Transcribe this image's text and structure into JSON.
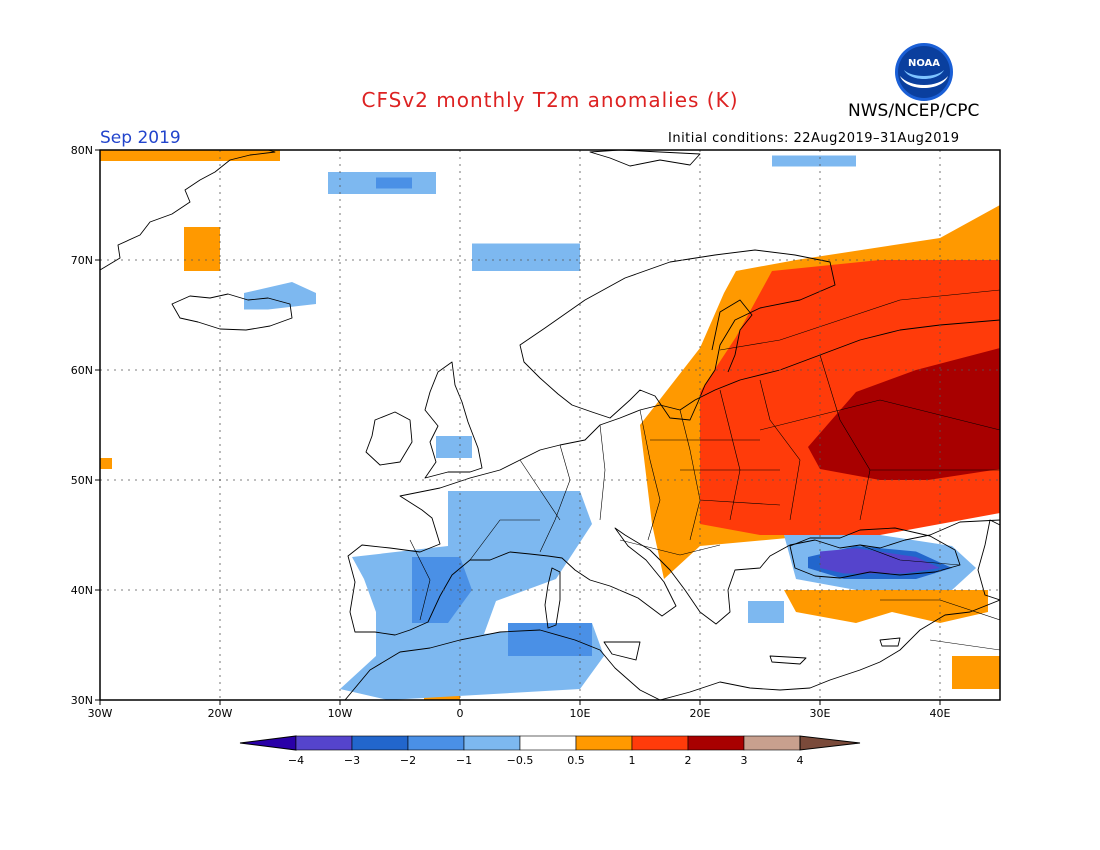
{
  "header": {
    "title": "CFSv2 monthly T2m anomalies (K)",
    "agency": "NWS/NCEP/CPC",
    "month": "Sep 2019",
    "initial_conditions": "Initial conditions: 22Aug2019–31Aug2019",
    "logo_text": "NOAA"
  },
  "colors": {
    "title": "#dd2222",
    "month": "#2244cc",
    "land_outline": "#000000",
    "grid": "#555555"
  },
  "map": {
    "lon_range": [
      -30,
      45
    ],
    "lat_range": [
      30,
      80
    ],
    "lon_ticks": [
      {
        "value": -30,
        "label": "30W"
      },
      {
        "value": -20,
        "label": "20W"
      },
      {
        "value": -10,
        "label": "10W"
      },
      {
        "value": 0,
        "label": "0"
      },
      {
        "value": 10,
        "label": "10E"
      },
      {
        "value": 20,
        "label": "20E"
      },
      {
        "value": 30,
        "label": "30E"
      },
      {
        "value": 40,
        "label": "40E"
      }
    ],
    "lat_ticks": [
      {
        "value": 30,
        "label": "30N"
      },
      {
        "value": 40,
        "label": "40N"
      },
      {
        "value": 50,
        "label": "50N"
      },
      {
        "value": 60,
        "label": "60N"
      },
      {
        "value": 70,
        "label": "70N"
      },
      {
        "value": 80,
        "label": "80N"
      }
    ],
    "grid": "dotted",
    "anomaly_regions": [
      {
        "class": "1",
        "points": [
          [
            -30,
            80
          ],
          [
            -15,
            80
          ],
          [
            -15,
            79
          ],
          [
            -30,
            79
          ]
        ]
      },
      {
        "class": "1",
        "points": [
          [
            -23,
            73
          ],
          [
            -20,
            73
          ],
          [
            -20,
            69
          ],
          [
            -23,
            69
          ]
        ]
      },
      {
        "class": "1",
        "points": [
          [
            -30,
            52
          ],
          [
            -29,
            52
          ],
          [
            -29,
            51
          ],
          [
            -30,
            51
          ]
        ]
      },
      {
        "class": "1",
        "points": [
          [
            23,
            69
          ],
          [
            28,
            70
          ],
          [
            40,
            72
          ],
          [
            45,
            75
          ],
          [
            45,
            50
          ],
          [
            30,
            45
          ],
          [
            20,
            44
          ],
          [
            17,
            41
          ],
          [
            16,
            46
          ],
          [
            15,
            55
          ],
          [
            20,
            62
          ],
          [
            22,
            67
          ]
        ]
      },
      {
        "class": "2",
        "points": [
          [
            26,
            69
          ],
          [
            35,
            70
          ],
          [
            45,
            70
          ],
          [
            45,
            47
          ],
          [
            35,
            45
          ],
          [
            25,
            45
          ],
          [
            20,
            46
          ],
          [
            20,
            58
          ],
          [
            23,
            63
          ]
        ]
      },
      {
        "class": "3",
        "points": [
          [
            33,
            58
          ],
          [
            38,
            60
          ],
          [
            45,
            62
          ],
          [
            45,
            51
          ],
          [
            39,
            50
          ],
          [
            35,
            50
          ],
          [
            30,
            51
          ],
          [
            29,
            53
          ]
        ]
      },
      {
        "class": "1",
        "points": [
          [
            27,
            40
          ],
          [
            33,
            40
          ],
          [
            35,
            41
          ],
          [
            38,
            40
          ],
          [
            44,
            40
          ],
          [
            44,
            38
          ],
          [
            40,
            37
          ],
          [
            36,
            38
          ],
          [
            33,
            37
          ],
          [
            28,
            38
          ]
        ]
      },
      {
        "class": "1",
        "points": [
          [
            41,
            34
          ],
          [
            45,
            34
          ],
          [
            45,
            31
          ],
          [
            41,
            31
          ]
        ]
      },
      {
        "class": "1",
        "points": [
          [
            -3,
            31
          ],
          [
            0,
            31
          ],
          [
            0,
            30
          ],
          [
            -3,
            30
          ]
        ]
      },
      {
        "class": "-1",
        "points": [
          [
            -11,
            78
          ],
          [
            -2,
            78
          ],
          [
            -2,
            76
          ],
          [
            -11,
            76
          ]
        ]
      },
      {
        "class": "-2",
        "points": [
          [
            -7,
            77.5
          ],
          [
            -4,
            77.5
          ],
          [
            -4,
            76.5
          ],
          [
            -7,
            76.5
          ]
        ]
      },
      {
        "class": "-1",
        "points": [
          [
            1,
            71.5
          ],
          [
            10,
            71.5
          ],
          [
            10,
            69
          ],
          [
            1,
            69
          ]
        ]
      },
      {
        "class": "-1",
        "points": [
          [
            26,
            79.5
          ],
          [
            33,
            79.5
          ],
          [
            33,
            78.5
          ],
          [
            26,
            78.5
          ]
        ]
      },
      {
        "class": "-1",
        "points": [
          [
            -18,
            67
          ],
          [
            -14,
            68
          ],
          [
            -12,
            67
          ],
          [
            -12,
            66
          ],
          [
            -16,
            65.5
          ],
          [
            -18,
            65.5
          ]
        ]
      },
      {
        "class": "-1",
        "points": [
          [
            -2,
            54
          ],
          [
            1,
            54
          ],
          [
            1,
            52
          ],
          [
            -2,
            52
          ]
        ]
      },
      {
        "class": "-1",
        "points": [
          [
            -1,
            49
          ],
          [
            10,
            49
          ],
          [
            11,
            46
          ],
          [
            8,
            41
          ],
          [
            3,
            39
          ],
          [
            2,
            36
          ],
          [
            11,
            37
          ],
          [
            12,
            34
          ],
          [
            10,
            31
          ],
          [
            -6,
            30
          ],
          [
            -10,
            31
          ],
          [
            -7,
            34
          ],
          [
            -7,
            38
          ],
          [
            -8,
            41
          ],
          [
            -9,
            43
          ],
          [
            -1,
            44
          ]
        ]
      },
      {
        "class": "-2",
        "points": [
          [
            -4,
            43
          ],
          [
            0,
            43
          ],
          [
            1,
            40
          ],
          [
            -1,
            37
          ],
          [
            -4,
            37
          ],
          [
            -4,
            40
          ]
        ]
      },
      {
        "class": "-2",
        "points": [
          [
            4,
            37
          ],
          [
            11,
            37
          ],
          [
            11,
            34
          ],
          [
            4,
            34
          ]
        ]
      },
      {
        "class": "-1",
        "points": [
          [
            27,
            45
          ],
          [
            35,
            45
          ],
          [
            41,
            44
          ],
          [
            43,
            42
          ],
          [
            41,
            40
          ],
          [
            33,
            40
          ],
          [
            28,
            41
          ]
        ]
      },
      {
        "class": "-3",
        "points": [
          [
            29,
            43
          ],
          [
            33,
            44
          ],
          [
            38,
            43.5
          ],
          [
            41,
            42
          ],
          [
            38,
            41
          ],
          [
            32,
            41
          ],
          [
            29,
            42
          ]
        ]
      },
      {
        "class": "-4",
        "points": [
          [
            30,
            43.5
          ],
          [
            33,
            43.8
          ],
          [
            38,
            43
          ],
          [
            40,
            42
          ],
          [
            37,
            41.5
          ],
          [
            32,
            41.5
          ],
          [
            30,
            42
          ]
        ]
      },
      {
        "class": "-1",
        "points": [
          [
            24,
            39
          ],
          [
            27,
            39
          ],
          [
            27,
            37
          ],
          [
            24,
            37
          ]
        ]
      }
    ]
  },
  "legend": {
    "colors": [
      "#2a00a8",
      "#5544cc",
      "#2266cc",
      "#4a90e6",
      "#7db8f0",
      "#ffffff",
      "#ff9900",
      "#ff3b0a",
      "#a80000",
      "#c8a08e",
      "#7a4a3a"
    ],
    "labels": [
      "−4",
      "−3",
      "−2",
      "−1",
      "−0.5",
      "0.5",
      "1",
      "2",
      "3",
      "4"
    ]
  }
}
